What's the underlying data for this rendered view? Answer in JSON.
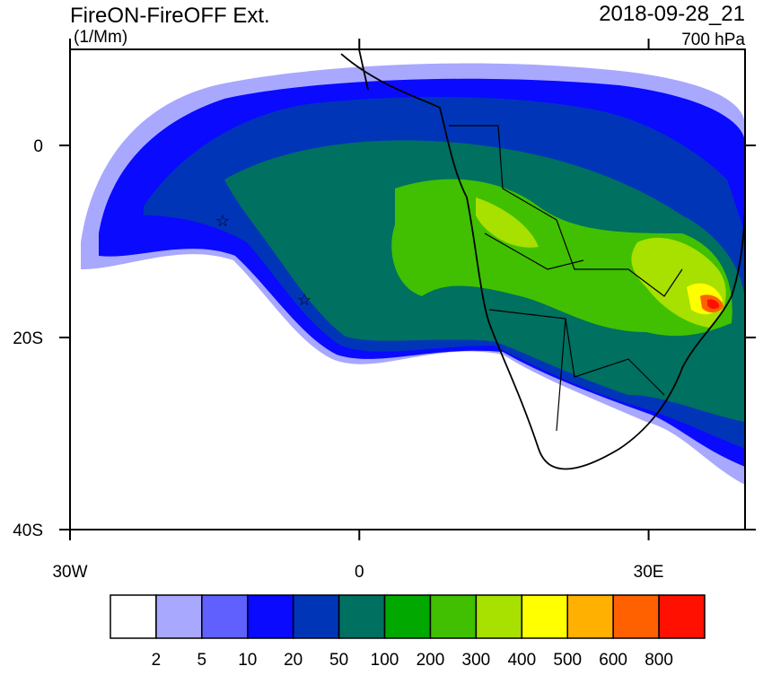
{
  "header": {
    "title": "FireON-FireOFF Ext.",
    "units": "(1/Mm)",
    "time": "2018-09-28_21",
    "level": "700 hPa"
  },
  "map": {
    "xlim": [
      -30,
      40
    ],
    "ylim": [
      -40,
      10
    ],
    "xticks": [
      {
        "value": -30,
        "label": "30W"
      },
      0,
      {
        "value": 30,
        "label": "30E"
      }
    ],
    "yticks": [
      0,
      {
        "value": -20,
        "label": "20S"
      },
      {
        "value": -40,
        "label": "40S"
      }
    ]
  },
  "colorbar": {
    "levels": [
      2,
      5,
      10,
      20,
      50,
      100,
      200,
      300,
      400,
      500,
      600,
      800
    ],
    "colors": [
      "#ffffff",
      "#a8a8ff",
      "#6060ff",
      "#0a0aff",
      "#0035b8",
      "#007060",
      "#00a800",
      "#40c000",
      "#a8e000",
      "#ffff00",
      "#ffb000",
      "#ff6000",
      "#ff1000"
    ]
  }
}
